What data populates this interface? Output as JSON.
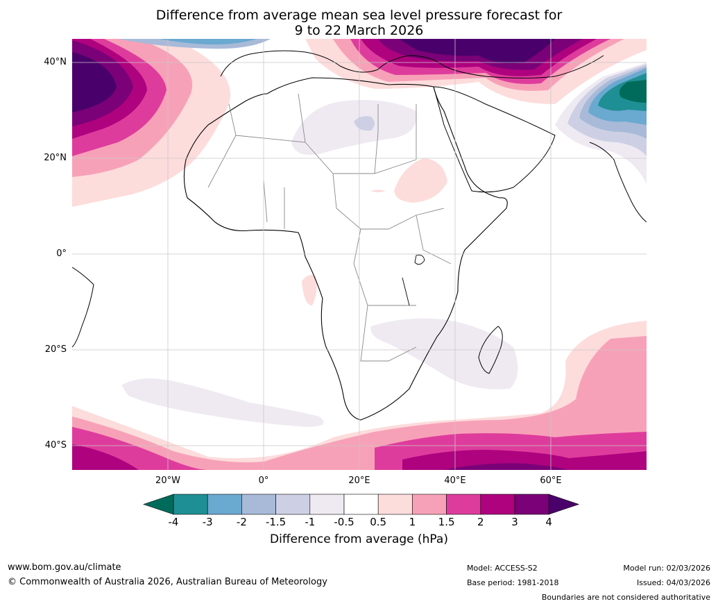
{
  "title": {
    "line1": "Difference from average mean sea level pressure forecast for",
    "line2": "9 to 22 March 2026"
  },
  "map": {
    "region": "Africa",
    "lat_labels": [
      "40°N",
      "20°N",
      "0°",
      "20°S",
      "40°S"
    ],
    "lon_labels": [
      "20°W",
      "0°",
      "20°E",
      "40°E",
      "60°E"
    ]
  },
  "colorbar": {
    "title": "Difference from average (hPa)",
    "ticks": [
      "-4",
      "-3",
      "-2",
      "-1.5",
      "-1",
      "-0.5",
      "0.5",
      "1",
      "1.5",
      "2",
      "3",
      "4"
    ],
    "colors": {
      "below_-4": "#006b5a",
      "-4_-3": "#1e8f94",
      "-3_-2": "#6aa9d0",
      "-2_-1.5": "#a8bad8",
      "-1.5_-1": "#cdd0e4",
      "-1_-0.5": "#efeaf2",
      "-0.5_0.5": "#ffffff",
      "0.5_1": "#fddcdc",
      "1_1.5": "#f7a1b8",
      "1.5_2": "#de3c9c",
      "2_3": "#ae027e",
      "3_4": "#7a0177",
      "above_4": "#49006a"
    }
  },
  "footer": {
    "website": "www.bom.gov.au/climate",
    "copyright": "© Commonwealth of Australia 2026, Australian Bureau of Meteorology",
    "model": "Model: ACCESS-S2",
    "base_period": "Base period: 1981-2018",
    "model_run": "Model run: 02/03/2026",
    "issued": "Issued: 04/03/2026",
    "disclaimer": "Boundaries are not considered authoritative"
  }
}
